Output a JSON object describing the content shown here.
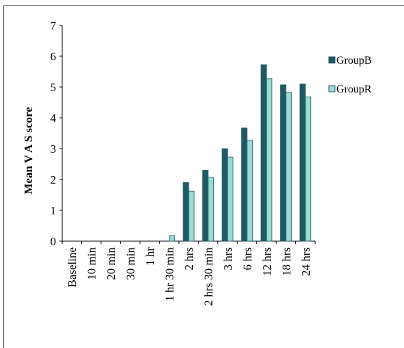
{
  "chart_data": {
    "type": "bar",
    "title": "",
    "xlabel": "",
    "ylabel": "Mean V A S score",
    "ylim": [
      0,
      7
    ],
    "yticks": [
      "0",
      "1",
      "2",
      "3",
      "4",
      "5",
      "6",
      "7"
    ],
    "categories": [
      "Baseline",
      "10 min",
      "20 min",
      "30 min",
      "1 hr",
      "1 hr 30 min",
      "2 hrs",
      "2 hrs 30 min",
      "3 hrs",
      "6 hrs",
      "12 hrs",
      "18 hrs",
      "24 hrs"
    ],
    "series": [
      {
        "name": "Group B",
        "color": "#1f5963",
        "values": [
          0,
          0,
          0,
          0,
          0,
          0,
          1.9,
          2.3,
          3.0,
          3.67,
          5.72,
          5.07,
          5.1
        ]
      },
      {
        "name": "Group R",
        "color": "#99ddd4",
        "values": [
          0,
          0,
          0,
          0,
          0,
          0.18,
          1.62,
          2.07,
          2.73,
          3.27,
          5.27,
          4.83,
          4.68
        ]
      }
    ],
    "legend": "right",
    "grid": false
  },
  "legend": {
    "items": [
      "GroupB",
      "GroupR"
    ]
  }
}
